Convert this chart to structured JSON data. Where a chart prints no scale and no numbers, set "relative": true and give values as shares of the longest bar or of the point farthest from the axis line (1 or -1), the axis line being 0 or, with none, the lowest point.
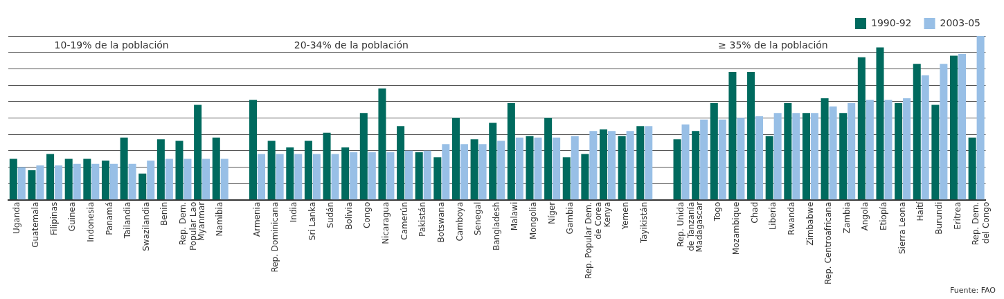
{
  "chart_data": {
    "type": "bar",
    "relative": true,
    "grid": "y",
    "legend": "top right",
    "categories": [
      "Uganda",
      "Guatemala",
      "Filipinas",
      "Guinea",
      "Indonesia",
      "Panamá",
      "Tailandia",
      "Swazilandia",
      "Benin",
      "Rep. Dem. Popular Lao",
      "Myanmar",
      "Namibia",
      null,
      "Armenia",
      "Rep. Dominicana",
      "India",
      "Sri Lanka",
      "Sudán",
      "Bolivia",
      "Congo",
      "Nicaragua",
      "Camerún",
      "Pakistán",
      "Botswana",
      "Camboya",
      "Senegal",
      "Bangladesh",
      "Malawi",
      "Mongolia",
      "Níger",
      "Gambia",
      "Rep. Popular Dem. de Corea",
      "Kenya",
      "Yemen",
      "Tayikistán",
      null,
      "Rep. Unida de Tanzanía",
      "Madagascar",
      "Togo",
      "Mozambique",
      "Chad",
      "Liberia",
      "Rwanda",
      "Zimbabwe",
      "Rep. Centroafricana",
      "Zambia",
      "Angola",
      "Etiopía",
      "Sierra Leona",
      "Haití",
      "Burundi",
      "Eritrea",
      "Rep. Dem. del Congo"
    ],
    "series": [
      {
        "name": "1990-92",
        "color": "#006a5e",
        "values": [
          0.25,
          0.18,
          0.28,
          0.25,
          0.25,
          0.24,
          0.38,
          0.16,
          0.37,
          0.36,
          0.58,
          0.38,
          null,
          0.61,
          0.36,
          0.32,
          0.36,
          0.41,
          0.32,
          0.53,
          0.68,
          0.45,
          0.29,
          0.26,
          0.5,
          0.37,
          0.47,
          0.59,
          0.39,
          0.5,
          0.26,
          0.28,
          0.43,
          0.39,
          0.45,
          null,
          0.37,
          0.42,
          0.59,
          0.78,
          0.78,
          0.39,
          0.59,
          0.53,
          0.62,
          0.53,
          0.87,
          0.93,
          0.59,
          0.83,
          0.58,
          0.88,
          0.38
        ]
      },
      {
        "name": "2003-05",
        "color": "#98bfe6",
        "values": [
          0.2,
          0.21,
          0.21,
          0.22,
          0.22,
          0.22,
          0.22,
          0.24,
          0.25,
          0.25,
          0.25,
          0.25,
          null,
          0.28,
          0.28,
          0.28,
          0.28,
          0.28,
          0.29,
          0.29,
          0.29,
          0.3,
          0.3,
          0.34,
          0.34,
          0.34,
          0.36,
          0.38,
          0.38,
          0.38,
          0.39,
          0.42,
          0.42,
          0.42,
          0.45,
          null,
          0.46,
          0.49,
          0.49,
          0.5,
          0.51,
          0.53,
          0.53,
          0.53,
          0.57,
          0.59,
          0.61,
          0.61,
          0.62,
          0.76,
          0.83,
          0.89,
          1
        ]
      }
    ],
    "annotations": [
      "10-19% de la población",
      "20-34% de la población",
      "≥ 35% de la población",
      "Fuente: FAO"
    ]
  }
}
